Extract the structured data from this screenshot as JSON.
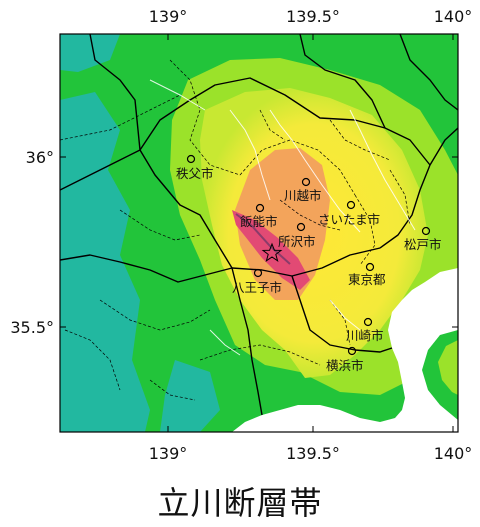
{
  "map": {
    "title": "立川断層帯",
    "lon_ticks": [
      "139°",
      "139.5°",
      "140°"
    ],
    "lat_ticks": [
      "36°",
      "35.5°"
    ],
    "colors": {
      "sea": "#ffffff",
      "low": "#22b8a0",
      "mid_low": "#22c43a",
      "mid": "#9be22a",
      "yellow": "#ffe836",
      "orange": "#f3a45b",
      "red": "#e24a74",
      "border": "#000000"
    },
    "fault_marker": "star",
    "cities": [
      {
        "name": "秩父市"
      },
      {
        "name": "川越市"
      },
      {
        "name": "飯能市"
      },
      {
        "name": "さいたま市"
      },
      {
        "name": "所沢市"
      },
      {
        "name": "松戸市"
      },
      {
        "name": "東京都"
      },
      {
        "name": "八王子市"
      },
      {
        "name": "川崎市"
      },
      {
        "name": "横浜市"
      }
    ]
  }
}
